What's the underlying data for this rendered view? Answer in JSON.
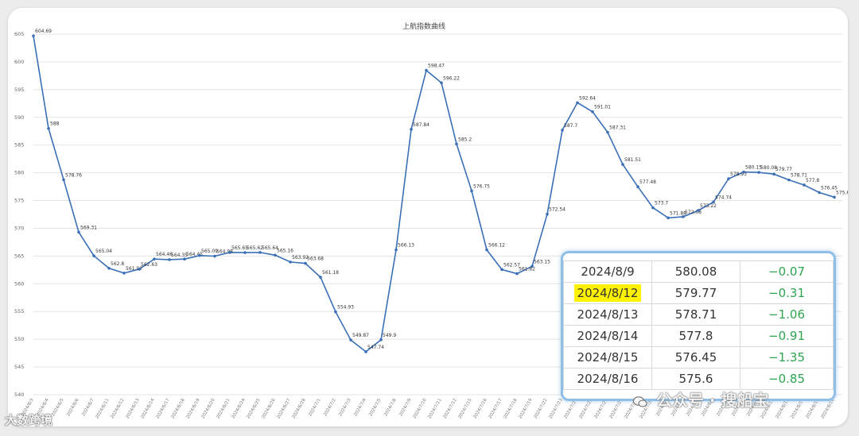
{
  "chart_data": {
    "type": "line",
    "title": "上航指数曲线",
    "ylim": [
      540,
      605
    ],
    "yticks": [
      540,
      545,
      550,
      555,
      560,
      565,
      570,
      575,
      580,
      585,
      590,
      595,
      600,
      605
    ],
    "grid": true,
    "series_color": "#3a6fb5",
    "x": [
      "2024/6/3",
      "2024/6/4",
      "2024/6/5",
      "2024/6/6",
      "2024/6/7",
      "2024/6/11",
      "2024/6/12",
      "2024/6/13",
      "2024/6/14",
      "2024/6/17",
      "2024/6/18",
      "2024/6/19",
      "2024/6/20",
      "2024/6/21",
      "2024/6/24",
      "2024/6/25",
      "2024/6/26",
      "2024/6/27",
      "2024/6/28",
      "2024/7/1",
      "2024/7/2",
      "2024/7/3",
      "2024/7/4",
      "2024/7/5",
      "2024/7/8",
      "2024/7/9",
      "2024/7/10",
      "2024/7/11",
      "2024/7/12",
      "2024/7/15",
      "2024/7/16",
      "2024/7/17",
      "2024/7/18",
      "2024/7/19",
      "2024/7/22",
      "2024/7/23",
      "2024/7/24",
      "2024/7/25",
      "2024/7/26",
      "2024/7/29",
      "2024/7/30",
      "2024/7/31",
      "2024/8/1",
      "2024/8/2",
      "2024/8/5",
      "2024/8/6",
      "2024/8/7",
      "2024/8/8",
      "2024/8/9",
      "2024/8/12",
      "2024/8/13",
      "2024/8/14",
      "2024/8/15",
      "2024/8/16"
    ],
    "values": [
      604.69,
      588,
      578.76,
      569.31,
      565.04,
      562.8,
      561.92,
      562.63,
      564.46,
      564.35,
      564.45,
      565.09,
      564.98,
      565.65,
      565.62,
      565.64,
      565.16,
      563.92,
      563.68,
      561.18,
      554.93,
      549.87,
      547.74,
      549.9,
      566.13,
      587.84,
      598.47,
      596.22,
      585.2,
      576.75,
      566.12,
      562.57,
      561.82,
      563.15,
      572.54,
      587.7,
      592.64,
      591.01,
      587.31,
      581.51,
      577.48,
      573.7,
      571.88,
      572.08,
      573.22,
      574.74,
      578.93,
      580.15,
      580.08,
      579.77,
      578.71,
      577.8,
      576.45,
      575.6
    ],
    "labels": [
      "604.69",
      "588",
      "578.76",
      "569.31",
      "565.04",
      "562.8",
      "561.92",
      "562.63",
      "564.46",
      "564.35",
      "564.45",
      "565.09",
      "564.98",
      "565.65",
      "565.62",
      "565.64",
      "565.16",
      "563.92",
      "563.68",
      "561.18",
      "554.93",
      "549.87",
      "547.74",
      "549.9",
      "566.13",
      "587.84",
      "598.47",
      "596.22",
      "585.2",
      "576.75",
      "566.12",
      "562.57",
      "561.82",
      "563.15",
      "572.54",
      "587.7",
      "592.64",
      "591.01",
      "587.31",
      "581.51",
      "577.48",
      "573.7",
      "571.88",
      "572.08",
      "573.22",
      "574.74",
      "578.93",
      "580.15",
      "580.08",
      "579.77",
      "578.71",
      "577.8",
      "576.45",
      "575.6"
    ]
  },
  "table": {
    "rows": [
      {
        "date": "2024/8/9",
        "index": "580.08",
        "change": "−0.07",
        "highlight": false
      },
      {
        "date": "2024/8/12",
        "index": "579.77",
        "change": "−0.31",
        "highlight": true
      },
      {
        "date": "2024/8/13",
        "index": "578.71",
        "change": "−1.06",
        "highlight": false
      },
      {
        "date": "2024/8/14",
        "index": "577.8",
        "change": "−0.91",
        "highlight": false
      },
      {
        "date": "2024/8/15",
        "index": "576.45",
        "change": "−1.35",
        "highlight": false
      },
      {
        "date": "2024/8/16",
        "index": "575.6",
        "change": "−0.85",
        "highlight": false
      }
    ]
  },
  "watermark_left": "大数跨境",
  "watermark_right": "公众号 · 搜船宝"
}
